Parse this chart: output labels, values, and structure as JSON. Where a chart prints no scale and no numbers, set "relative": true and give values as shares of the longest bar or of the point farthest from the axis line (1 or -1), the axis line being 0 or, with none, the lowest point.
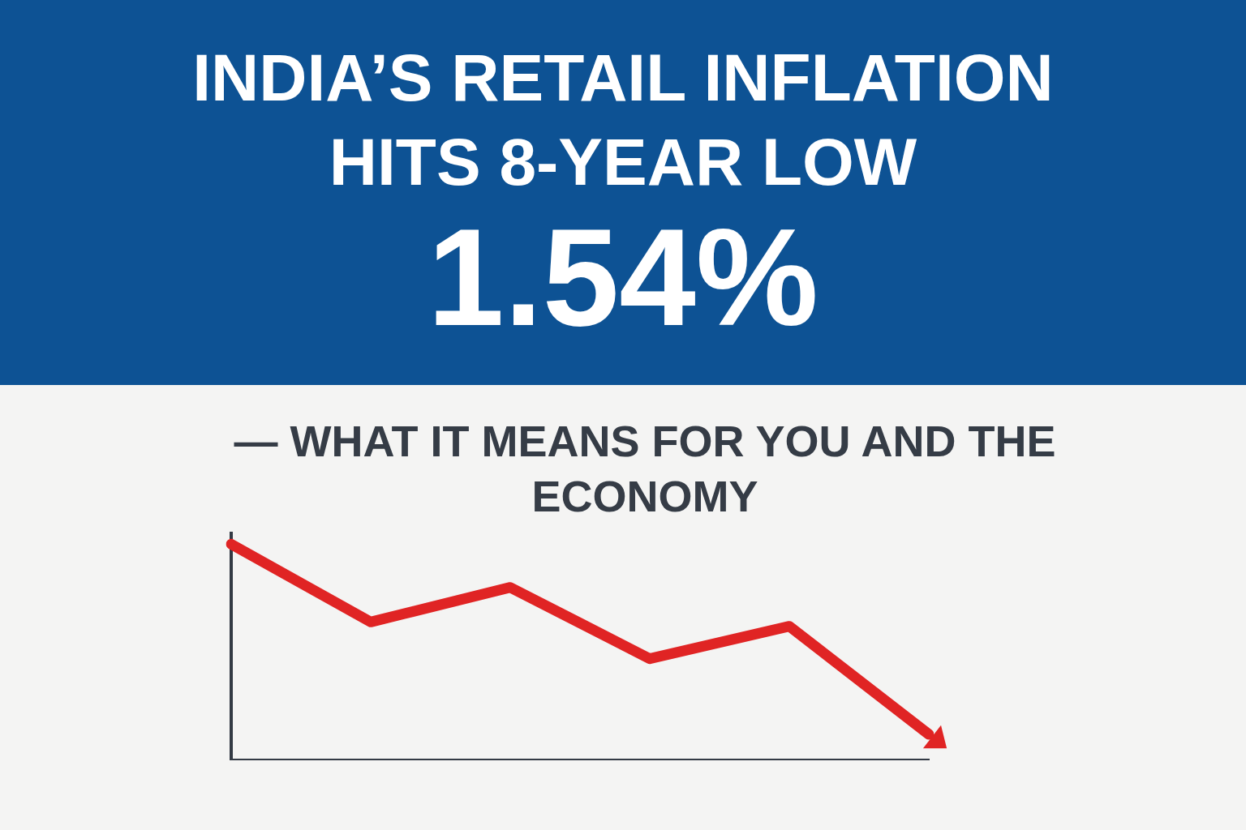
{
  "chart_data": {
    "type": "line",
    "title": "INDIA’S RETAIL INFLATION HITS 8-YEAR LOW",
    "annotations": [
      "1.54%"
    ],
    "subtitle": "— WHAT IT MEANS FOR YOU AND THE ECONOMY",
    "categories": [
      null,
      null,
      null,
      null,
      null,
      null
    ],
    "values": [
      1,
      0.64,
      0.8,
      0.47,
      0.62,
      0.12
    ],
    "color": "#e02424",
    "relative": true
  }
}
